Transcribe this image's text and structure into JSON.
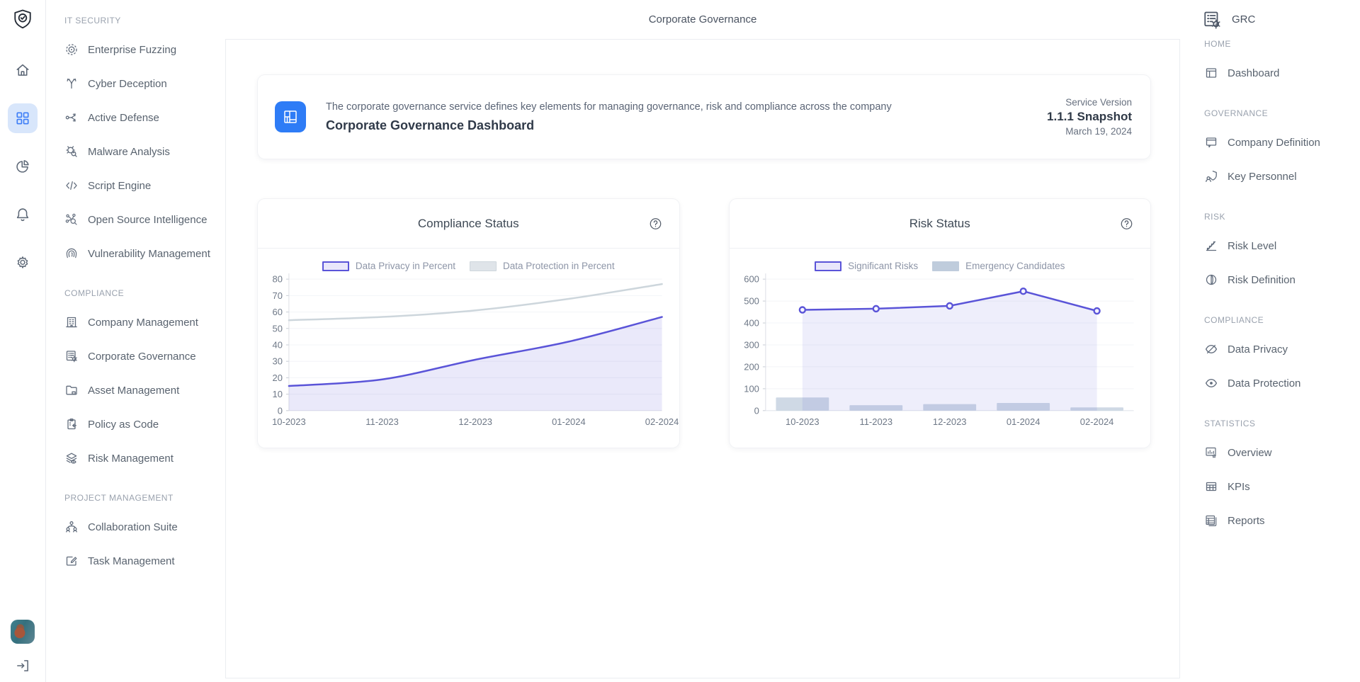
{
  "app": {
    "page_title": "Corporate Governance"
  },
  "rail": {
    "logo_icon": "shield-check-icon",
    "items": [
      "home-icon",
      "grid-icon",
      "pie-chart-icon",
      "bell-icon",
      "gear-icon"
    ],
    "active_item": "grid-icon",
    "bottom": [
      "avatar",
      "logout-icon"
    ],
    "active_bg": "#d8e6fb",
    "active_color": "#3d7ef7"
  },
  "nav_left": {
    "sections": [
      {
        "title": "IT SECURITY",
        "items": [
          {
            "label": "Enterprise Fuzzing",
            "icon": "target-icon"
          },
          {
            "label": "Cyber Deception",
            "icon": "branch-icon"
          },
          {
            "label": "Active Defense",
            "icon": "share-arrows-icon"
          },
          {
            "label": "Malware Analysis",
            "icon": "bug-search-icon"
          },
          {
            "label": "Script Engine",
            "icon": "code-icon"
          },
          {
            "label": "Open Source Intelligence",
            "icon": "network-search-icon"
          },
          {
            "label": "Vulnerability Management",
            "icon": "fingerprint-icon"
          }
        ]
      },
      {
        "title": "COMPLIANCE",
        "items": [
          {
            "label": "Company Management",
            "icon": "building-icon"
          },
          {
            "label": "Corporate Governance",
            "icon": "list-gear-icon"
          },
          {
            "label": "Asset Management",
            "icon": "folder-icon"
          },
          {
            "label": "Policy as Code",
            "icon": "clipboard-arrow-icon"
          },
          {
            "label": "Risk Management",
            "icon": "layers-eye-icon"
          }
        ]
      },
      {
        "title": "PROJECT MANAGEMENT",
        "items": [
          {
            "label": "Collaboration Suite",
            "icon": "org-chart-icon"
          },
          {
            "label": "Task Management",
            "icon": "edit-board-icon"
          }
        ]
      }
    ]
  },
  "nav_right": {
    "title": "GRC",
    "title_icon": "list-gear-icon",
    "sections": [
      {
        "title": "HOME",
        "items": [
          {
            "label": "Dashboard",
            "icon": "layout-icon"
          }
        ]
      },
      {
        "title": "GOVERNANCE",
        "items": [
          {
            "label": "Company Definition",
            "icon": "window-chat-icon"
          },
          {
            "label": "Key Personnel",
            "icon": "shield-user-icon"
          }
        ]
      },
      {
        "title": "RISK",
        "items": [
          {
            "label": "Risk Level",
            "icon": "stairs-chart-icon"
          },
          {
            "label": "Risk Definition",
            "icon": "split-circle-icon"
          }
        ]
      },
      {
        "title": "COMPLIANCE",
        "items": [
          {
            "label": "Data Privacy",
            "icon": "eye-off-icon"
          },
          {
            "label": "Data Protection",
            "icon": "eye-icon"
          }
        ]
      },
      {
        "title": "STATISTICS",
        "items": [
          {
            "label": "Overview",
            "icon": "chart-star-icon"
          },
          {
            "label": "KPIs",
            "icon": "table-icon"
          },
          {
            "label": "Reports",
            "icon": "report-stack-icon"
          }
        ]
      }
    ]
  },
  "header_card": {
    "icon": "dashboard-tiles-icon",
    "icon_bg": "#2e7cf6",
    "description": "The corporate governance service defines key elements for managing governance, risk and compliance across the company",
    "title": "Corporate Governance Dashboard",
    "service_version_label": "Service Version",
    "version": "1.1.1 Snapshot",
    "date": "March 19, 2024"
  },
  "chart_data": [
    {
      "type": "area",
      "title": "Compliance Status",
      "categories": [
        "10-2023",
        "11-2023",
        "12-2023",
        "01-2024",
        "02-2024"
      ],
      "series": [
        {
          "name": "Data Privacy in Percent",
          "type": "line",
          "smooth": true,
          "markers": false,
          "values": [
            15,
            19,
            31,
            42,
            57
          ],
          "color": "#5a54d8",
          "fill": "rgba(90,84,216,0.13)",
          "legend_bg": "#e9e7fb",
          "legend_border": "2px solid #5a54d8"
        },
        {
          "name": "Data Protection in Percent",
          "type": "line",
          "smooth": true,
          "markers": false,
          "values": [
            55,
            57,
            61,
            68,
            77
          ],
          "color": "#cdd6dc",
          "fill": null,
          "legend_bg": "#dfe4e9",
          "legend_border": "1px solid #ced6dc"
        }
      ],
      "ylim": [
        0,
        80
      ],
      "ytick_step": 10,
      "x_mode": "edge",
      "grid": true,
      "legend_position": "top"
    },
    {
      "type": "line+bar",
      "title": "Risk Status",
      "categories": [
        "10-2023",
        "11-2023",
        "12-2023",
        "01-2024",
        "02-2024"
      ],
      "series": [
        {
          "name": "Significant Risks",
          "type": "line",
          "smooth": false,
          "markers": true,
          "values": [
            460,
            465,
            478,
            545,
            455
          ],
          "color": "#5a54d8",
          "fill": "rgba(90,84,216,0.10)",
          "legend_bg": "#e9e7fb",
          "legend_border": "2px solid #5a54d8"
        },
        {
          "name": "Emergency Candidates",
          "type": "bar",
          "values": [
            60,
            25,
            30,
            35,
            15
          ],
          "color": "#c3cfde",
          "legend_bg": "#bfccdc",
          "legend_border": "none"
        }
      ],
      "ylim": [
        0,
        600
      ],
      "ytick_step": 100,
      "x_mode": "band",
      "grid": true,
      "legend_position": "top"
    }
  ],
  "colors": {
    "accent_indigo": "#5a54d8",
    "accent_blue": "#2e7cf6",
    "gray_line": "#cdd6dc",
    "bar_fill": "#c3cfde",
    "rail_active_bg": "#d8e6fb",
    "border": "#ebedf1"
  }
}
